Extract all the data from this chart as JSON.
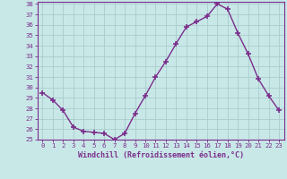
{
  "x": [
    0,
    1,
    2,
    3,
    4,
    5,
    6,
    7,
    8,
    9,
    10,
    11,
    12,
    13,
    14,
    15,
    16,
    17,
    18,
    19,
    20,
    21,
    22,
    23
  ],
  "y": [
    29.5,
    28.8,
    27.8,
    26.2,
    25.8,
    25.7,
    25.6,
    25.0,
    25.6,
    27.5,
    29.2,
    31.0,
    32.5,
    34.2,
    35.8,
    36.3,
    36.8,
    38.0,
    37.5,
    35.2,
    33.2,
    30.8,
    29.2,
    27.8
  ],
  "line_color": "#7b2d8b",
  "marker": "+",
  "marker_size": 4,
  "marker_linewidth": 1.2,
  "linewidth": 1.0,
  "bg_color": "#c8e8e8",
  "grid_color": "#aacccc",
  "xlabel": "Windchill (Refroidissement éolien,°C)",
  "xlim": [
    -0.5,
    23.5
  ],
  "ylim": [
    25,
    38.2
  ],
  "yticks": [
    25,
    26,
    27,
    28,
    29,
    30,
    31,
    32,
    33,
    34,
    35,
    36,
    37,
    38
  ],
  "xticks": [
    0,
    1,
    2,
    3,
    4,
    5,
    6,
    7,
    8,
    9,
    10,
    11,
    12,
    13,
    14,
    15,
    16,
    17,
    18,
    19,
    20,
    21,
    22,
    23
  ],
  "tick_label_color": "#7b2d8b",
  "tick_label_fontsize": 5.2,
  "xlabel_fontsize": 6.0,
  "spine_color": "#7b2d8b"
}
